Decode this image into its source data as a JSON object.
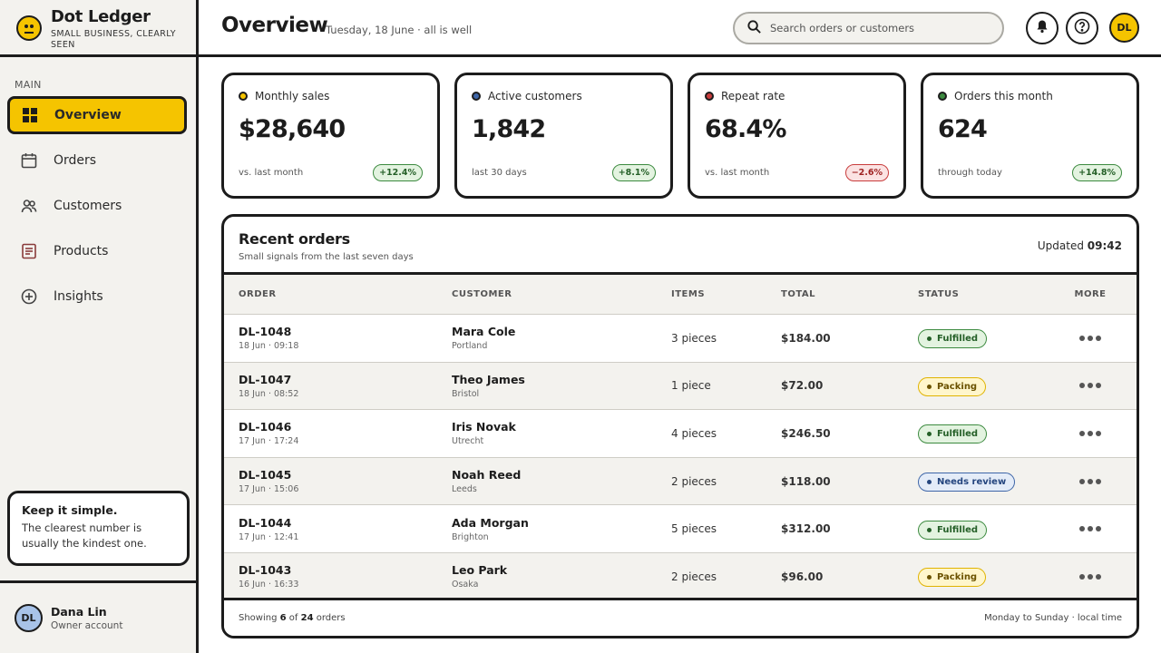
{
  "brand": {
    "name": "Dot Ledger",
    "tagline": "SMALL BUSINESS, CLEARLY SEEN"
  },
  "sidebar": {
    "section": "MAIN",
    "items": [
      {
        "label": "Overview",
        "icon": "grid-icon",
        "active": true
      },
      {
        "label": "Orders",
        "icon": "calendar-icon"
      },
      {
        "label": "Customers",
        "icon": "users-icon"
      },
      {
        "label": "Products",
        "icon": "document-icon"
      },
      {
        "label": "Insights",
        "icon": "plus-circle-icon"
      }
    ],
    "tip": {
      "title": "Keep it simple.",
      "body": "The clearest number is usually the kindest one."
    },
    "user": {
      "initials": "DL",
      "name": "Dana Lin",
      "role": "Owner account"
    }
  },
  "header": {
    "title": "Overview",
    "subtitle": "Tuesday, 18 June · all is well",
    "search_placeholder": "Search orders or customers",
    "avatar_initials": "DL"
  },
  "stats": [
    {
      "label": "Monthly sales",
      "value": "$28,640",
      "note": "vs. last month",
      "change": "+12.4%",
      "trend": "up",
      "dot_color": "#f5c400"
    },
    {
      "label": "Active customers",
      "value": "1,842",
      "note": "last 30 days",
      "change": "+8.1%",
      "trend": "up",
      "dot_color": "#3e66a8"
    },
    {
      "label": "Repeat rate",
      "value": "68.4%",
      "note": "vs. last month",
      "change": "−2.6%",
      "trend": "down",
      "dot_color": "#c83c3c"
    },
    {
      "label": "Orders this month",
      "value": "624",
      "note": "through today",
      "change": "+14.8%",
      "trend": "up",
      "dot_color": "#3c8a3f"
    }
  ],
  "orders": {
    "title": "Recent orders",
    "subtitle": "Small signals from the last seven days",
    "updated_label": "Updated",
    "updated_time": "09:42",
    "columns": [
      "ORDER",
      "CUSTOMER",
      "ITEMS",
      "TOTAL",
      "STATUS",
      "MORE"
    ],
    "rows": [
      {
        "id": "DL-1048",
        "date": "18 Jun · 09:18",
        "customer": "Mara Cole",
        "city": "Portland",
        "items": "3 pieces",
        "total": "$184.00",
        "status": "Fulfilled"
      },
      {
        "id": "DL-1047",
        "date": "18 Jun · 08:52",
        "customer": "Theo James",
        "city": "Bristol",
        "items": "1 piece",
        "total": "$72.00",
        "status": "Packing"
      },
      {
        "id": "DL-1046",
        "date": "17 Jun · 17:24",
        "customer": "Iris Novak",
        "city": "Utrecht",
        "items": "4 pieces",
        "total": "$246.50",
        "status": "Fulfilled"
      },
      {
        "id": "DL-1045",
        "date": "17 Jun · 15:06",
        "customer": "Noah Reed",
        "city": "Leeds",
        "items": "2 pieces",
        "total": "$118.00",
        "status": "Needs review"
      },
      {
        "id": "DL-1044",
        "date": "17 Jun · 12:41",
        "customer": "Ada Morgan",
        "city": "Brighton",
        "items": "5 pieces",
        "total": "$312.00",
        "status": "Fulfilled"
      },
      {
        "id": "DL-1043",
        "date": "16 Jun · 16:33",
        "customer": "Leo Park",
        "city": "Osaka",
        "items": "2 pieces",
        "total": "$96.00",
        "status": "Packing"
      }
    ],
    "footer": {
      "showing_prefix": "Showing",
      "shown": "6",
      "of": "of",
      "total": "24",
      "suffix": "orders",
      "note": "Monday to Sunday · local time"
    }
  }
}
